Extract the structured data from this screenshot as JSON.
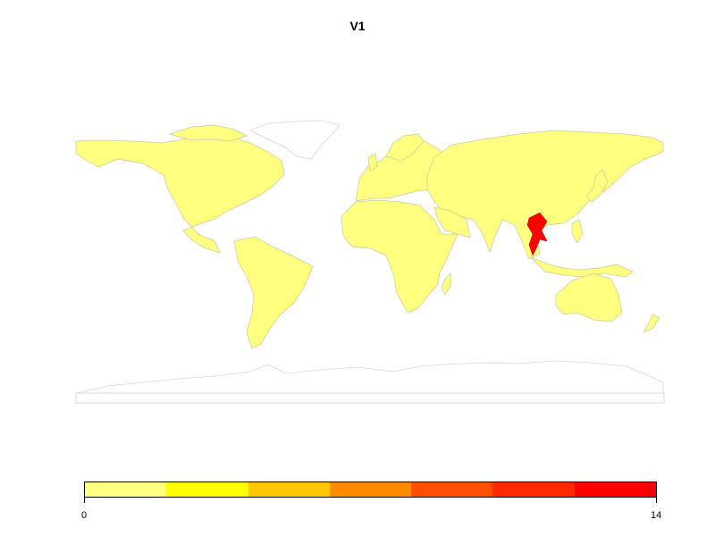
{
  "title": "V1",
  "legend": {
    "min_label": "0",
    "max_label": "14",
    "colors": [
      "#FFFF80",
      "#FFFF00",
      "#FFC800",
      "#FF8C00",
      "#FF5000",
      "#FF2800",
      "#FF0000"
    ]
  },
  "map": {
    "base_color": "#FFFF80",
    "no_data_color": "#ffffff",
    "highlight": {
      "region": "Thailand",
      "color": "#FF0000"
    }
  }
}
